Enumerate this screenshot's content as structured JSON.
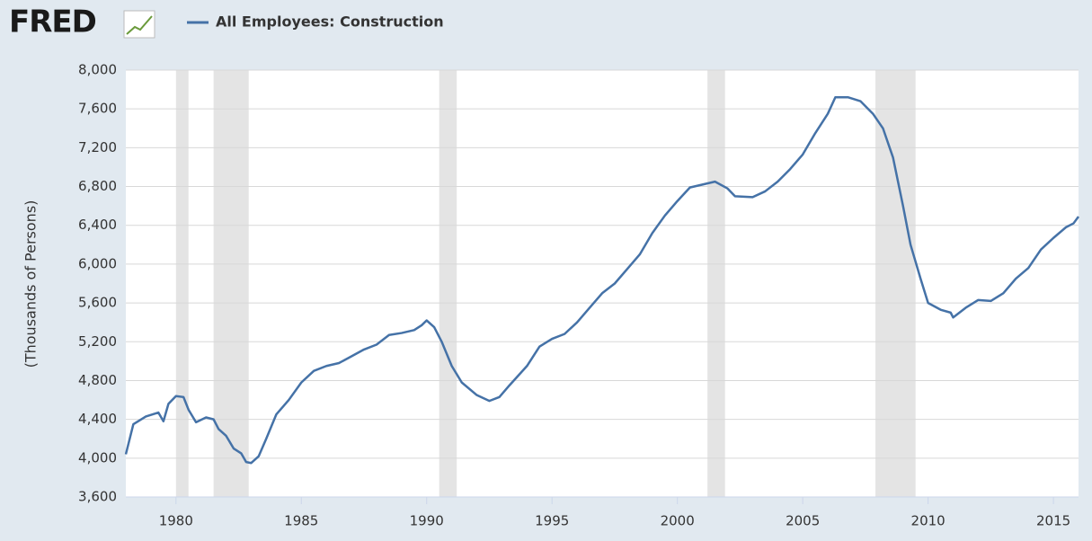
{
  "logo": "FRED",
  "chart_data": {
    "type": "line",
    "y_label": "(Thousands of Persons)",
    "xlim": [
      1978,
      2016
    ],
    "xticks": [
      1980,
      1985,
      1990,
      1995,
      2000,
      2005,
      2010,
      2015
    ],
    "ylim": [
      3600,
      8000
    ],
    "yticks": [
      {
        "value": 3600,
        "label": "3,600"
      },
      {
        "value": 4000,
        "label": "4,000"
      },
      {
        "value": 4400,
        "label": "4,400"
      },
      {
        "value": 4800,
        "label": "4,800"
      },
      {
        "value": 5200,
        "label": "5,200"
      },
      {
        "value": 5600,
        "label": "5,600"
      },
      {
        "value": 6000,
        "label": "6,000"
      },
      {
        "value": 6400,
        "label": "6,400"
      },
      {
        "value": 6800,
        "label": "6,800"
      },
      {
        "value": 7200,
        "label": "7,200"
      },
      {
        "value": 7600,
        "label": "7,600"
      },
      {
        "value": 8000,
        "label": "8,000"
      }
    ],
    "grid": true,
    "recessions": [
      [
        1980.0,
        1980.5
      ],
      [
        1981.5,
        1982.9
      ],
      [
        1990.5,
        1991.2
      ],
      [
        2001.2,
        2001.9
      ],
      [
        2007.9,
        2009.5
      ]
    ],
    "recession_color": "#e4e4e4",
    "x": [
      1978.0,
      1978.3,
      1978.8,
      1979.3,
      1979.5,
      1979.7,
      1980.0,
      1980.3,
      1980.5,
      1980.8,
      1981.2,
      1981.5,
      1981.7,
      1982.0,
      1982.3,
      1982.6,
      1982.8,
      1983.0,
      1983.3,
      1983.6,
      1984.0,
      1984.5,
      1985.0,
      1985.5,
      1986.0,
      1986.5,
      1987.0,
      1987.5,
      1988.0,
      1988.5,
      1989.0,
      1989.5,
      1989.8,
      1990.0,
      1990.3,
      1990.6,
      1991.0,
      1991.4,
      1992.0,
      1992.5,
      1992.9,
      1993.3,
      1994.0,
      1994.5,
      1995.0,
      1995.5,
      1996.0,
      1996.5,
      1997.0,
      1997.5,
      1998.0,
      1998.5,
      1999.0,
      1999.5,
      2000.0,
      2000.5,
      2001.0,
      2001.5,
      2002.0,
      2002.3,
      2003.0,
      2003.5,
      2004.0,
      2004.5,
      2005.0,
      2005.5,
      2006.0,
      2006.3,
      2006.8,
      2007.3,
      2007.8,
      2008.2,
      2008.6,
      2009.0,
      2009.3,
      2009.7,
      2010.0,
      2010.5,
      2010.9,
      2011.0,
      2011.5,
      2012.0,
      2012.5,
      2013.0,
      2013.5,
      2014.0,
      2014.5,
      2015.0,
      2015.5,
      2015.8,
      2016.0
    ],
    "series": [
      {
        "name": "All Employees: Construction",
        "color": "#4572a7",
        "values": [
          4040,
          4350,
          4430,
          4470,
          4380,
          4560,
          4640,
          4630,
          4500,
          4370,
          4420,
          4400,
          4300,
          4230,
          4100,
          4050,
          3960,
          3950,
          4020,
          4200,
          4450,
          4600,
          4780,
          4900,
          4950,
          4980,
          5050,
          5120,
          5170,
          5270,
          5290,
          5320,
          5370,
          5420,
          5350,
          5200,
          4950,
          4780,
          4650,
          4590,
          4630,
          4750,
          4950,
          5150,
          5230,
          5280,
          5400,
          5550,
          5700,
          5800,
          5950,
          6100,
          6320,
          6500,
          6650,
          6790,
          6820,
          6850,
          6780,
          6700,
          6690,
          6750,
          6850,
          6980,
          7130,
          7350,
          7550,
          7720,
          7720,
          7680,
          7550,
          7400,
          7100,
          6600,
          6200,
          5850,
          5600,
          5530,
          5500,
          5450,
          5550,
          5630,
          5620,
          5700,
          5850,
          5960,
          6150,
          6270,
          6380,
          6420,
          6490
        ]
      }
    ]
  }
}
